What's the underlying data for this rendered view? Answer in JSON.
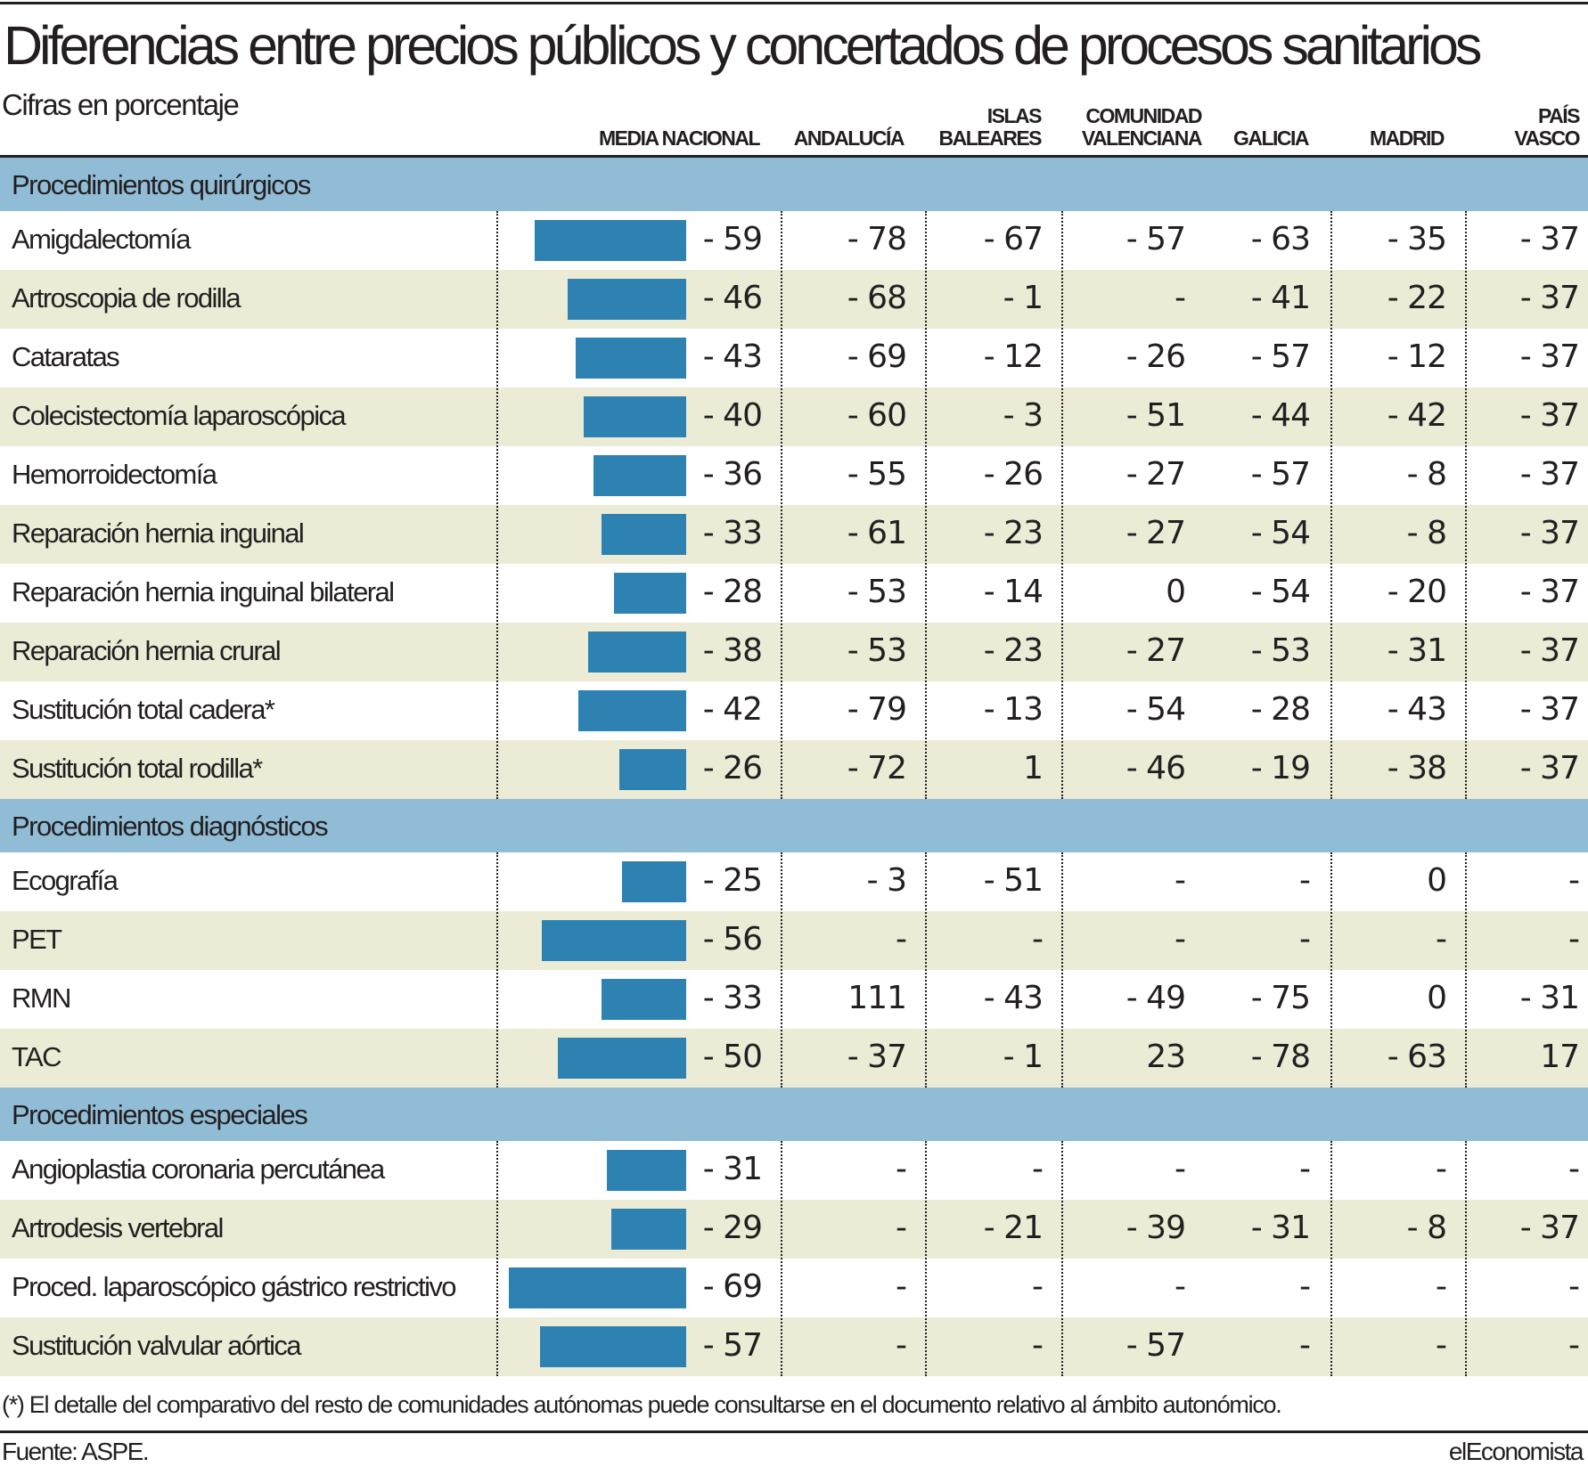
{
  "title": "Diferencias entre precios públicos y concertados de procesos sanitarios",
  "subtitle": "Cifras en porcentaje",
  "columns": [
    [
      "MEDIA NACIONAL"
    ],
    [
      "ANDALUCÍA"
    ],
    [
      "ISLAS",
      "BALEARES"
    ],
    [
      "COMUNIDAD",
      "VALENCIANA"
    ],
    [
      "GALICIA"
    ],
    [
      "MADRID"
    ],
    [
      "PAÍS",
      "VASCO"
    ]
  ],
  "colors": {
    "bar": "#2e82b2",
    "section": "#91bcd6",
    "shade": "#ecebd6"
  },
  "chart_data": {
    "type": "table",
    "sections": [
      {
        "name": "Procedimientos quirúrgicos",
        "rows": [
          {
            "label": "Amigdalectomía",
            "bar": -59,
            "values": [
              "- 59",
              "- 78",
              "- 67",
              "- 57",
              "- 63",
              "- 35",
              "- 37"
            ]
          },
          {
            "label": "Artroscopia de rodilla",
            "bar": -46,
            "values": [
              "- 46",
              "- 68",
              "- 1",
              "-",
              "- 41",
              "- 22",
              "- 37"
            ]
          },
          {
            "label": "Cataratas",
            "bar": -43,
            "values": [
              "- 43",
              "- 69",
              "- 12",
              "- 26",
              "- 57",
              "- 12",
              "- 37"
            ]
          },
          {
            "label": "Colecistectomía laparoscópica",
            "bar": -40,
            "values": [
              "- 40",
              "- 60",
              "- 3",
              "- 51",
              "- 44",
              "- 42",
              "- 37"
            ]
          },
          {
            "label": "Hemorroidectomía",
            "bar": -36,
            "values": [
              "- 36",
              "- 55",
              "- 26",
              "- 27",
              "- 57",
              "- 8",
              "- 37"
            ]
          },
          {
            "label": "Reparación hernia inguinal",
            "bar": -33,
            "values": [
              "- 33",
              "- 61",
              "- 23",
              "- 27",
              "- 54",
              "- 8",
              "- 37"
            ]
          },
          {
            "label": "Reparación hernia inguinal bilateral",
            "bar": -28,
            "values": [
              "- 28",
              "- 53",
              "- 14",
              "0",
              "- 54",
              "- 20",
              "- 37"
            ]
          },
          {
            "label": "Reparación hernia crural",
            "bar": -38,
            "values": [
              "- 38",
              "- 53",
              "- 23",
              "- 27",
              "- 53",
              "- 31",
              "- 37"
            ]
          },
          {
            "label": "Sustitución total cadera*",
            "bar": -42,
            "values": [
              "- 42",
              "- 79",
              "- 13",
              "- 54",
              "- 28",
              "- 43",
              "- 37"
            ]
          },
          {
            "label": "Sustitución total rodilla*",
            "bar": -26,
            "values": [
              "- 26",
              "- 72",
              "1",
              "- 46",
              "- 19",
              "- 38",
              "- 37"
            ]
          }
        ]
      },
      {
        "name": "Procedimientos diagnósticos",
        "rows": [
          {
            "label": "Ecografía",
            "bar": -25,
            "values": [
              "- 25",
              "- 3",
              "- 51",
              "-",
              "-",
              "0",
              "-"
            ]
          },
          {
            "label": "PET",
            "bar": -56,
            "values": [
              "- 56",
              "-",
              "-",
              "-",
              "-",
              "-",
              "-"
            ]
          },
          {
            "label": "RMN",
            "bar": -33,
            "values": [
              "- 33",
              "111",
              "- 43",
              "- 49",
              "- 75",
              "0",
              "- 31"
            ]
          },
          {
            "label": "TAC",
            "bar": -50,
            "values": [
              "- 50",
              "- 37",
              "- 1",
              "23",
              "- 78",
              "- 63",
              "17"
            ]
          }
        ]
      },
      {
        "name": "Procedimientos especiales",
        "rows": [
          {
            "label": "Angioplastia coronaria percutánea",
            "bar": -31,
            "values": [
              "- 31",
              "-",
              "-",
              "-",
              "-",
              "-",
              "-"
            ]
          },
          {
            "label": "Artrodesis vertebral",
            "bar": -29,
            "values": [
              "- 29",
              "-",
              "- 21",
              "- 39",
              "- 31",
              "- 8",
              "- 37"
            ]
          },
          {
            "label": "Proced. laparoscópico gástrico restrictivo",
            "bar": -69,
            "values": [
              "- 69",
              "-",
              "-",
              "-",
              "-",
              "-",
              "-"
            ]
          },
          {
            "label": "Sustitución valvular aórtica",
            "bar": -57,
            "values": [
              "- 57",
              "-",
              "-",
              "- 57",
              "-",
              "-",
              "-"
            ]
          }
        ]
      }
    ]
  },
  "footnote": "(*) El detalle del comparativo del resto de comunidades autónomas puede consultarse en el documento relativo al ámbito autonómico.",
  "source": "Fuente: ASPE.",
  "brand": "elEconomista"
}
